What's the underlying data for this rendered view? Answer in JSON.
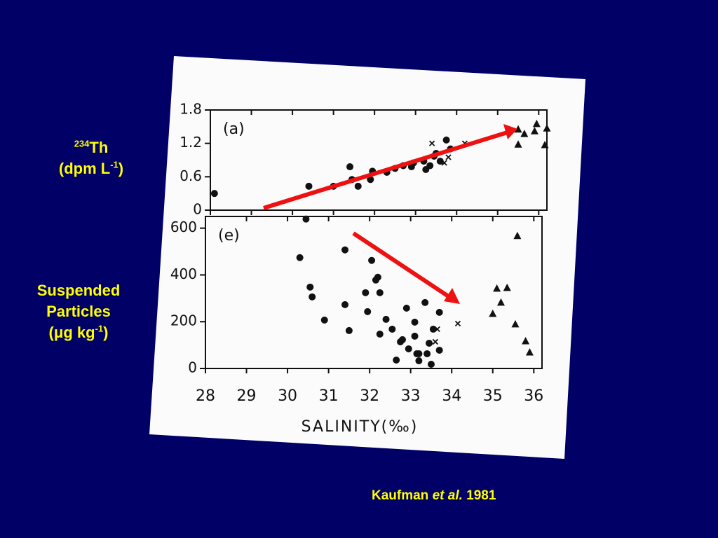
{
  "chart_data": [
    {
      "type": "scatter",
      "annotation": "(a)",
      "ylabel": [
        "234",
        "Th",
        "(dpm L",
        "-1",
        ")"
      ],
      "xlim": [
        28,
        36.2
      ],
      "xticks": [
        28,
        29,
        30,
        31,
        32,
        33,
        34,
        35,
        36
      ],
      "xtick_labels": false,
      "ylim": [
        0,
        1.8
      ],
      "yticks": [
        0,
        0.6,
        1.2,
        1.8
      ],
      "series": [
        {
          "marker": "circle",
          "color": "#111111",
          "x": [
            28.1,
            30.4,
            31.0,
            31.4,
            31.45,
            31.6,
            31.95,
            31.9,
            32.3,
            32.5,
            32.7,
            32.9,
            32.95,
            33.2,
            33.25,
            33.35,
            33.45,
            33.5,
            33.6,
            33.75,
            33.85
          ],
          "values": [
            0.3,
            0.43,
            0.43,
            0.78,
            0.55,
            0.43,
            0.7,
            0.55,
            0.68,
            0.75,
            0.8,
            0.78,
            0.85,
            0.88,
            0.73,
            0.8,
            0.97,
            1.02,
            0.88,
            1.26,
            1.1
          ]
        },
        {
          "marker": "x",
          "color": "#111111",
          "x": [
            33.4,
            33.7,
            33.8,
            34.2
          ],
          "values": [
            1.2,
            0.85,
            0.95,
            1.2
          ]
        },
        {
          "marker": "triangle",
          "color": "#111111",
          "x": [
            35.5,
            35.65,
            35.5,
            35.9,
            35.95,
            36.2,
            36.15
          ],
          "values": [
            1.45,
            1.37,
            1.18,
            1.42,
            1.55,
            1.47,
            1.17
          ]
        }
      ]
    },
    {
      "type": "scatter",
      "annotation": "(e)",
      "ylabel": [
        "Suspended",
        "Particles",
        "(μg kg",
        "-1",
        ")"
      ],
      "xlabel": "SALINITY(‰)",
      "xlim": [
        28,
        36.2
      ],
      "xticks": [
        28,
        29,
        30,
        31,
        32,
        33,
        34,
        35,
        36
      ],
      "xtick_labels": true,
      "ylim": [
        0,
        650
      ],
      "yticks": [
        0,
        200,
        400,
        600
      ],
      "series": [
        {
          "marker": "circle",
          "color": "#111111",
          "x": [
            30.3,
            30.45,
            30.55,
            30.6,
            30.9,
            31.4,
            31.4,
            31.5,
            31.9,
            31.95,
            32.05,
            32.15,
            32.2,
            32.25,
            32.25,
            32.4,
            32.55,
            32.65,
            32.75,
            32.8,
            32.9,
            32.95,
            33.1,
            33.1,
            33.15,
            33.2,
            33.2,
            33.35,
            33.4,
            33.45,
            33.55,
            33.5,
            33.7,
            33.7
          ],
          "values": [
            474,
            639,
            348,
            306,
            207,
            507,
            273,
            162,
            324,
            243,
            462,
            378,
            390,
            324,
            147,
            210,
            168,
            36,
            114,
            123,
            258,
            84,
            198,
            138,
            63,
            33,
            63,
            282,
            63,
            108,
            168,
            18,
            240,
            78
          ]
        },
        {
          "marker": "x",
          "color": "#111111",
          "x": [
            33.65,
            33.6,
            34.15
          ],
          "values": [
            168,
            114,
            192
          ]
        },
        {
          "marker": "triangle",
          "color": "#111111",
          "x": [
            35.6,
            35.1,
            35.35,
            35.2,
            35.0,
            35.55,
            35.8,
            35.9
          ],
          "values": [
            567,
            342,
            345,
            282,
            234,
            189,
            117,
            69
          ]
        }
      ]
    }
  ],
  "source": [
    "Kaufman",
    "et al.",
    "1981"
  ]
}
